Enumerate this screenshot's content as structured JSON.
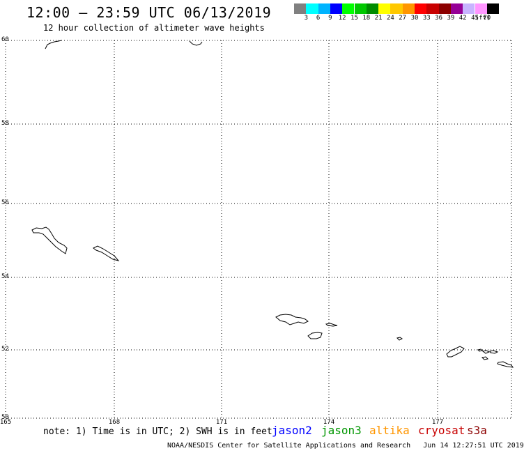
{
  "header": {
    "title": "12:00 — 23:59 UTC 06/13/2019",
    "subtitle": "12 hour collection of altimeter wave heights"
  },
  "colorbar": {
    "colors": [
      "#808080",
      "#00ffff",
      "#00b4ff",
      "#0000ff",
      "#00ff00",
      "#00c800",
      "#008c00",
      "#ffff00",
      "#ffc800",
      "#ff9600",
      "#ff0000",
      "#c80000",
      "#8c0000",
      "#960096",
      "#c8b4ff",
      "#ff96ff",
      "#000000"
    ],
    "labels": [
      "3",
      "6",
      "9",
      "12",
      "15",
      "18",
      "21",
      "24",
      "27",
      "30",
      "33",
      "36",
      "39",
      "42",
      "45",
      "70",
      "(ft)"
    ]
  },
  "map": {
    "lat_labels": [
      "60",
      "58",
      "56",
      "54",
      "52",
      "50"
    ],
    "lon_labels": [
      "165",
      "168",
      "171",
      "174",
      "177"
    ]
  },
  "footer": {
    "note": "note: 1) Time is in UTC; 2) SWH is in feet",
    "satellites": [
      {
        "name": "jason2",
        "color": "#0000ff"
      },
      {
        "name": "jason3",
        "color": "#009600"
      },
      {
        "name": "altika",
        "color": "#ff9600"
      },
      {
        "name": "cryosat",
        "color": "#c80000"
      },
      {
        "name": "s3a",
        "color": "#8c0000"
      }
    ],
    "credit_left": "NOAA/NESDIS Center for Satellite Applications and Research",
    "credit_right": "Jun 14 12:27:51 UTC 2019"
  }
}
